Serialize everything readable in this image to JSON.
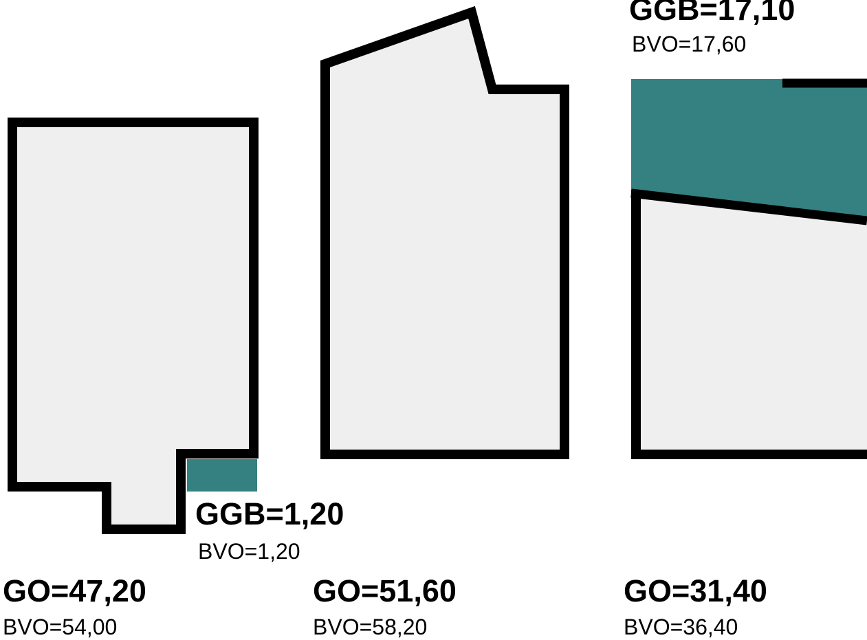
{
  "colors": {
    "wall": "#000000",
    "floor": "#efefef",
    "ggb_area": "#358080",
    "background": "#ffffff"
  },
  "units": [
    {
      "id": "unit-1",
      "go_label": "GO=47,20",
      "bvo_label": "BVO=54,00",
      "extra": {
        "ggb_label": "GGB=1,20",
        "bvo_label": "BVO=1,20"
      }
    },
    {
      "id": "unit-2",
      "go_label": "GO=51,60",
      "bvo_label": "BVO=58,20"
    },
    {
      "id": "unit-3",
      "go_label": "GO=31,40",
      "bvo_label": "BVO=36,40",
      "extra": {
        "ggb_label": "GGB=17,10",
        "bvo_label": "BVO=17,60"
      }
    }
  ]
}
